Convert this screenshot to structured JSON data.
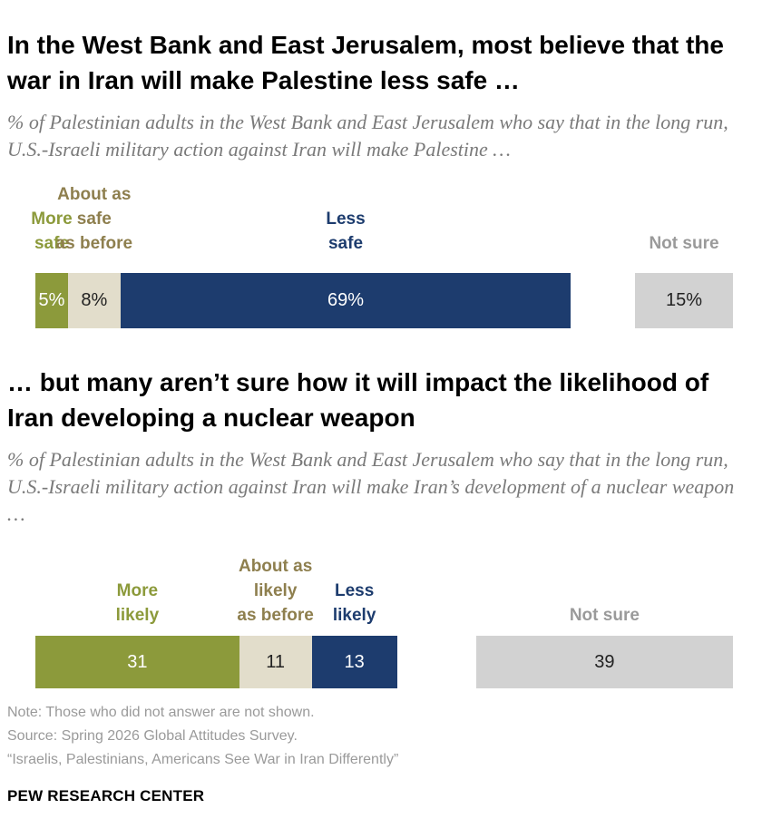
{
  "panels": [
    {
      "title": "In the West Bank and East Jerusalem, most believe that the war in Iran will make Palestine less safe …",
      "subtitle": "% of Palestinian adults in the West Bank and East Jerusalem who say that in the long run, U.S.-Israeli military action against Iran will make Palestine …"
    },
    {
      "title": "… but many aren’t sure how it will impact the likelihood of Iran developing a nuclear weapon",
      "subtitle": "% of Palestinian adults in the West Bank and East Jerusalem who say that in the long run, U.S.-Israeli military action against Iran will make Iran’s development of a nuclear weapon …"
    }
  ],
  "chart_data": [
    {
      "type": "bar",
      "orientation": "horizontal-stacked",
      "segments": [
        {
          "name": "More safe",
          "label_lines": [
            "More",
            "safe"
          ],
          "value": 5,
          "display": "5%",
          "color": "#8c9a3b",
          "label_color": "#8c9a3b",
          "text_color": "#ffffff"
        },
        {
          "name": "About as safe as before",
          "label_lines": [
            "About as",
            "safe",
            "as before"
          ],
          "value": 8,
          "display": "8%",
          "color": "#e2ddcb",
          "label_color": "#8e7f4e",
          "text_color": "#222222"
        },
        {
          "name": "Less safe",
          "label_lines": [
            "Less",
            "safe"
          ],
          "value": 69,
          "display": "69%",
          "color": "#1d3c6e",
          "label_color": "#1d3c6e",
          "text_color": "#ffffff"
        }
      ],
      "separate": {
        "name": "Not sure",
        "label_lines": [
          "Not sure"
        ],
        "value": 15,
        "display": "15%",
        "color": "#d2d2d2",
        "label_color": "#9a9a9a",
        "text_color": "#222222"
      }
    },
    {
      "type": "bar",
      "orientation": "horizontal-stacked",
      "segments": [
        {
          "name": "More likely",
          "label_lines": [
            "More",
            "likely"
          ],
          "value": 31,
          "display": "31",
          "color": "#8c9a3b",
          "label_color": "#8c9a3b",
          "text_color": "#ffffff"
        },
        {
          "name": "About as likely as before",
          "label_lines": [
            "About as",
            "likely",
            "as before"
          ],
          "value": 11,
          "display": "11",
          "color": "#e2ddcb",
          "label_color": "#8e7f4e",
          "text_color": "#222222"
        },
        {
          "name": "Less likely",
          "label_lines": [
            "Less",
            "likely"
          ],
          "value": 13,
          "display": "13",
          "color": "#1d3c6e",
          "label_color": "#1d3c6e",
          "text_color": "#ffffff"
        }
      ],
      "separate": {
        "name": "Not sure",
        "label_lines": [
          "Not sure"
        ],
        "value": 39,
        "display": "39",
        "color": "#d2d2d2",
        "label_color": "#9a9a9a",
        "text_color": "#222222"
      }
    }
  ],
  "footer": {
    "note": "Note: Those who did not answer are not shown.",
    "source": "Source: Spring 2026 Global Attitudes Survey.",
    "report": "“Israelis, Palestinians, Americans See War in Iran Differently”",
    "brand": "PEW RESEARCH CENTER"
  }
}
